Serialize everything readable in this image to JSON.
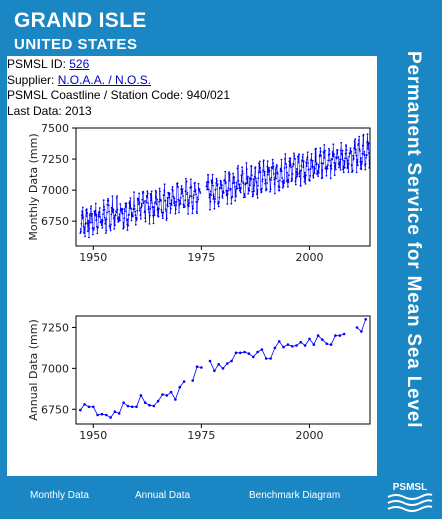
{
  "header": {
    "title": "GRAND ISLE",
    "subtitle": "UNITED STATES",
    "side_banner": "Permanent Service for Mean Sea Level"
  },
  "info": {
    "id_label": "PSMSL ID: ",
    "id_value": "526",
    "supplier_label": "Supplier: ",
    "supplier_value": "N.O.A.A. / N.O.S.",
    "coastline_text": "PSMSL Coastline / Station Code: 940/021",
    "last_data_text": "Last Data: 2013"
  },
  "footer": {
    "monthly_label": "Monthly Data",
    "annual_label": "Annual Data",
    "benchmark_label": "Benchmark Diagram",
    "logo_text": "PSMSL"
  },
  "colors": {
    "background": "#1a86c3",
    "series": "#0000ff"
  },
  "chart_data": [
    {
      "type": "line",
      "ylabel": "Monthly Data (mm)",
      "xlim": [
        1946,
        2014
      ],
      "ylim": [
        6550,
        7500
      ],
      "xticks": [
        1950,
        1975,
        2000
      ],
      "yticks": [
        6750,
        7000,
        7250,
        7500
      ],
      "grid": false,
      "trend": {
        "start_year": 1947,
        "start_value": 6740,
        "end_year": 2013,
        "end_value": 7300
      },
      "gaps": [
        [
          1974.8,
          1976.1
        ]
      ],
      "annual_amplitude": 110,
      "markers": true
    },
    {
      "type": "line",
      "ylabel": "Annual Data (mm)",
      "xlim": [
        1946,
        2014
      ],
      "ylim": [
        6660,
        7320
      ],
      "xticks": [
        1950,
        1975,
        2000
      ],
      "yticks": [
        6750,
        7000,
        7250
      ],
      "grid": false,
      "markers": true,
      "x": [
        1947,
        1948,
        1949,
        1950,
        1951,
        1952,
        1953,
        1954,
        1955,
        1956,
        1957,
        1958,
        1959,
        1960,
        1961,
        1962,
        1963,
        1964,
        1965,
        1966,
        1967,
        1968,
        1969,
        1970,
        1971,
        1973,
        1974,
        1975,
        1977,
        1978,
        1979,
        1980,
        1981,
        1982,
        1983,
        1984,
        1985,
        1986,
        1987,
        1988,
        1989,
        1990,
        1991,
        1992,
        1993,
        1994,
        1995,
        1996,
        1997,
        1998,
        1999,
        2000,
        2001,
        2002,
        2003,
        2004,
        2005,
        2006,
        2007,
        2008,
        2011,
        2012,
        2013
      ],
      "y": [
        6745,
        6780,
        6765,
        6765,
        6715,
        6720,
        6715,
        6700,
        6735,
        6725,
        6790,
        6770,
        6765,
        6765,
        6835,
        6790,
        6775,
        6770,
        6800,
        6840,
        6835,
        6855,
        6810,
        6885,
        6920,
        6925,
        7010,
        7005,
        7045,
        6985,
        7025,
        7000,
        7030,
        7045,
        7095,
        7095,
        7100,
        7090,
        7070,
        7100,
        7115,
        7060,
        7060,
        7125,
        7165,
        7130,
        7145,
        7135,
        7140,
        7160,
        7140,
        7180,
        7145,
        7200,
        7175,
        7150,
        7145,
        7200,
        7200,
        7210,
        7250,
        7225,
        7300
      ]
    }
  ]
}
